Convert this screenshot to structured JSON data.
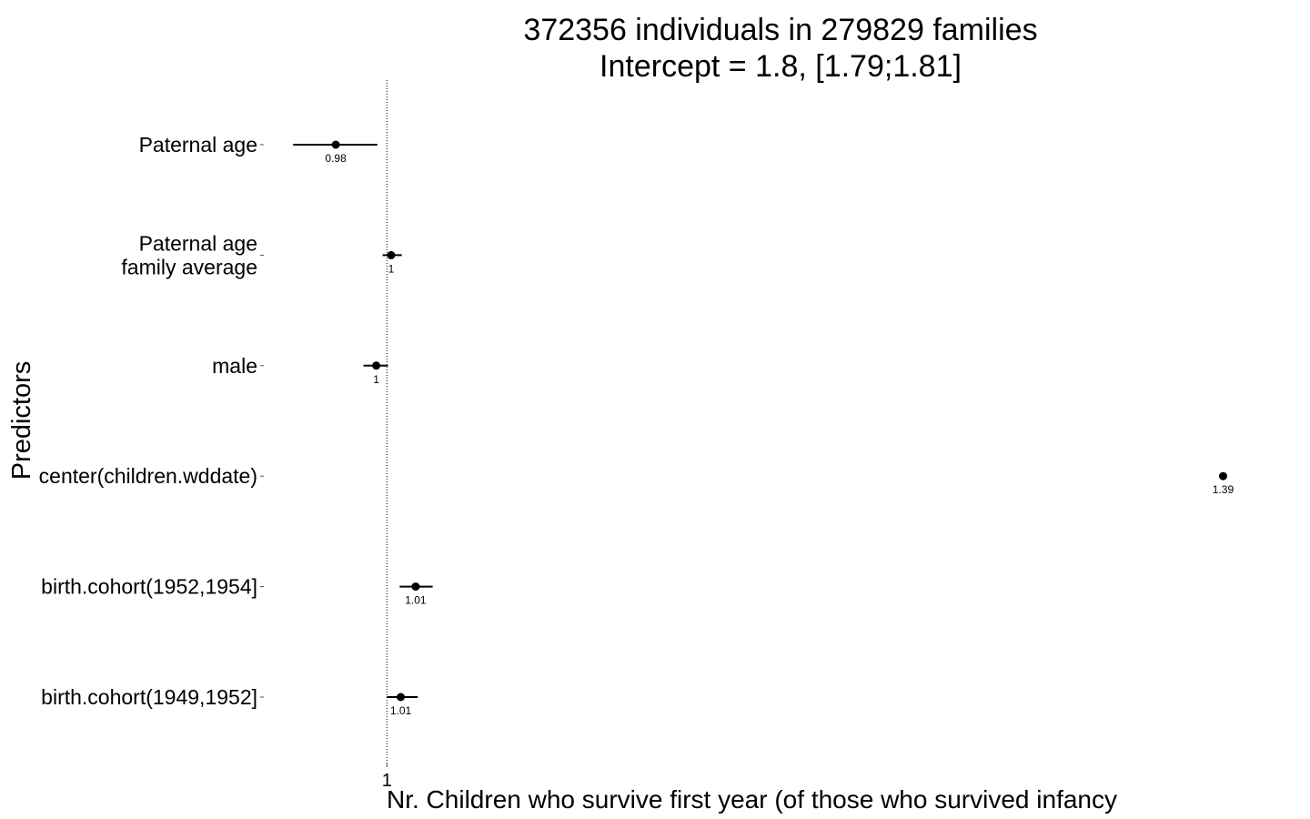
{
  "chart_data": {
    "type": "scatter",
    "title_lines": [
      "372356 individuals in 279829 families",
      "Intercept = 1.8, [1.79;1.81]"
    ],
    "xlabel": "Nr. Children who survive first year (of those who survived infancy",
    "ylabel": "Predictors",
    "x_ticks": [
      {
        "value": 1.0,
        "label": "1"
      }
    ],
    "reference_line": 1.0,
    "xlim": [
      0.9465,
      1.4333
    ],
    "points": [
      {
        "category": [
          "Paternal age"
        ],
        "estimate": 0.976,
        "ci": [
          0.956,
          0.9955
        ],
        "label": "0.98"
      },
      {
        "category": [
          "Paternal age",
          "family average"
        ],
        "estimate": 1.002,
        "ci": [
          0.998,
          1.007
        ],
        "label": "1"
      },
      {
        "category": [
          "male"
        ],
        "estimate": 0.995,
        "ci": [
          0.989,
          1.0005
        ],
        "label": "1"
      },
      {
        "category": [
          "center(children.wddate)"
        ],
        "estimate": 1.3925,
        "ci": [
          1.392,
          1.393
        ],
        "label": "1.39"
      },
      {
        "category": [
          "birth.cohort(1952,1954]"
        ],
        "estimate": 1.0135,
        "ci": [
          1.006,
          1.0215
        ],
        "label": "1.01"
      },
      {
        "category": [
          "birth.cohort(1949,1952]"
        ],
        "estimate": 1.0065,
        "ci": [
          1.0,
          1.0145
        ],
        "label": "1.01"
      }
    ]
  }
}
